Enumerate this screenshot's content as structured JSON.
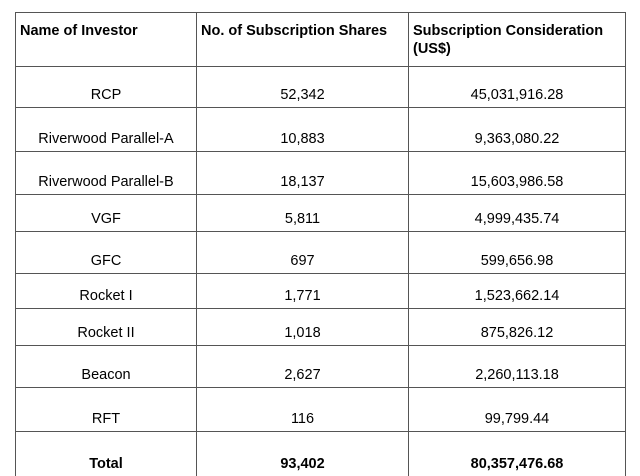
{
  "table": {
    "headers": [
      "Name of Investor",
      "No. of Subscription Shares",
      "Subscription Consideration (US$)"
    ],
    "rows": [
      {
        "name": "RCP",
        "shares": "52,342",
        "consideration": "45,031,916.28"
      },
      {
        "name": "Riverwood Parallel-A",
        "shares": "10,883",
        "consideration": "9,363,080.22"
      },
      {
        "name": "Riverwood Parallel-B",
        "shares": "18,137",
        "consideration": "15,603,986.58"
      },
      {
        "name": "VGF",
        "shares": "5,811",
        "consideration": "4,999,435.74"
      },
      {
        "name": "GFC",
        "shares": "697",
        "consideration": "599,656.98"
      },
      {
        "name": "Rocket I",
        "shares": "1,771",
        "consideration": "1,523,662.14"
      },
      {
        "name": "Rocket II",
        "shares": "1,018",
        "consideration": "875,826.12"
      },
      {
        "name": "Beacon",
        "shares": "2,627",
        "consideration": "2,260,113.18"
      },
      {
        "name": "RFT",
        "shares": "116",
        "consideration": "99,799.44"
      }
    ],
    "total": {
      "name": "Total",
      "shares": "93,402",
      "consideration": "80,357,476.68"
    }
  }
}
